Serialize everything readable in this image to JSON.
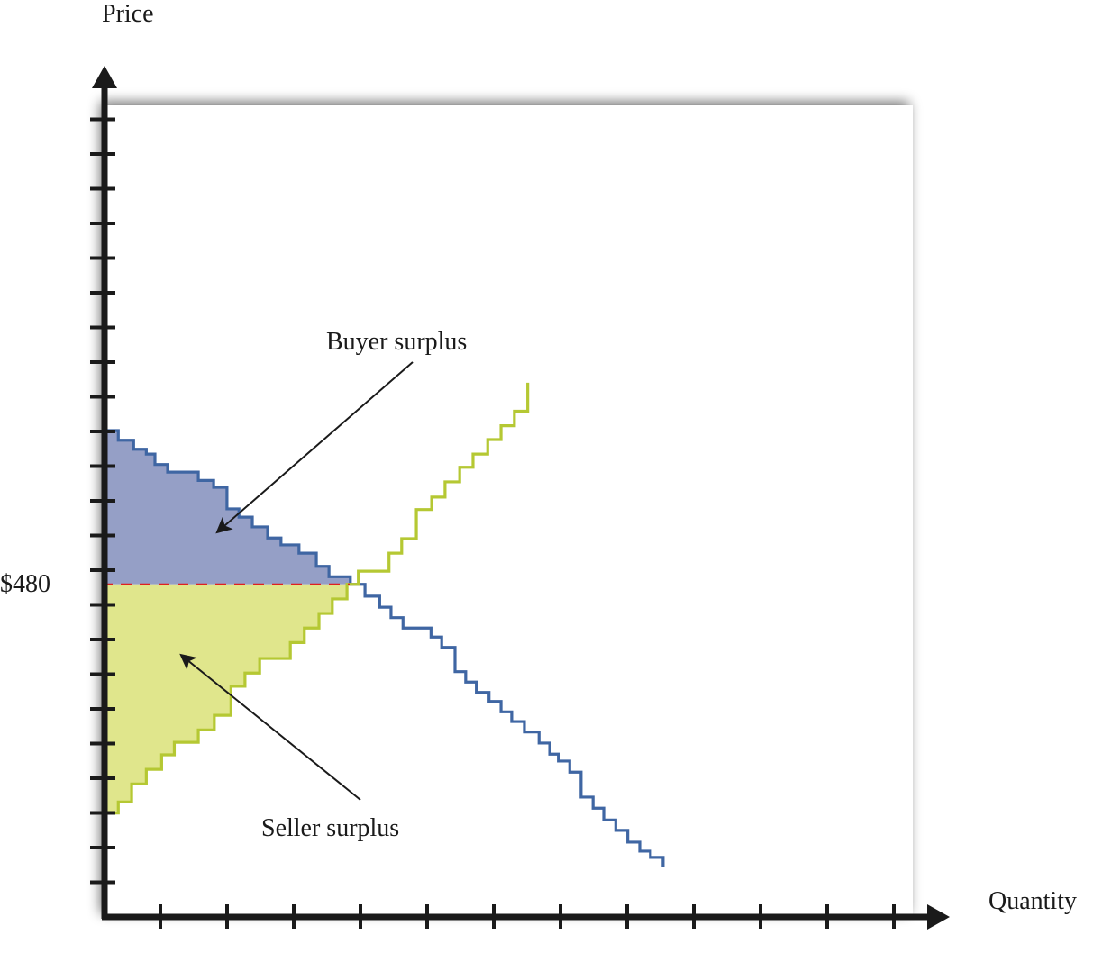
{
  "chart_data": {
    "type": "line",
    "title": "",
    "xlabel": "Quantity",
    "ylabel": "Price",
    "price_label": "$480",
    "equilibrium_price": 480,
    "grid": false,
    "annotations": [
      {
        "text": "Buyer surplus"
      },
      {
        "text": "Seller surplus"
      }
    ],
    "series": [
      {
        "role": "demand",
        "shape": "step-down",
        "start_q": 0,
        "steps": [
          [
            702,
            2.2
          ],
          [
            688,
            4.5
          ],
          [
            675,
            6.4
          ],
          [
            668,
            7.7
          ],
          [
            653,
            9.6
          ],
          [
            642,
            14.2
          ],
          [
            630,
            16.5
          ],
          [
            620,
            18.5
          ],
          [
            589,
            20.3
          ],
          [
            577,
            22.3
          ],
          [
            563,
            24.6
          ],
          [
            547,
            26.6
          ],
          [
            537,
            29.3
          ],
          [
            525,
            31.9
          ],
          [
            506,
            33.8
          ],
          [
            491,
            37.0
          ],
          [
            480,
            39.2
          ],
          [
            463,
            41.4
          ],
          [
            447,
            43.1
          ],
          [
            432,
            44.9
          ],
          [
            417,
            49.1
          ],
          [
            404,
            50.7
          ],
          [
            389,
            52.7
          ],
          [
            354,
            54.3
          ],
          [
            339,
            55.9
          ],
          [
            324,
            57.8
          ],
          [
            311,
            59.6
          ],
          [
            296,
            61.2
          ],
          [
            282,
            63.1
          ],
          [
            267,
            65.3
          ],
          [
            251,
            66.9
          ],
          [
            235,
            68.2
          ],
          [
            225,
            69.9
          ],
          [
            209,
            71.6
          ],
          [
            173,
            73.4
          ],
          [
            157,
            75.0
          ],
          [
            140,
            76.8
          ],
          [
            125,
            78.6
          ],
          [
            108,
            80.4
          ],
          [
            95,
            82.0
          ],
          [
            86,
            83.9
          ]
        ],
        "end_price": 72
      },
      {
        "role": "supply",
        "shape": "step-up",
        "start_q": 0,
        "steps": [
          [
            150,
            2.2
          ],
          [
            166,
            4.2
          ],
          [
            192,
            6.4
          ],
          [
            213,
            8.7
          ],
          [
            234,
            10.6
          ],
          [
            252,
            14.2
          ],
          [
            270,
            16.6
          ],
          [
            291,
            19.1
          ],
          [
            333,
            21.2
          ],
          [
            352,
            23.4
          ],
          [
            373,
            28.0
          ],
          [
            396,
            30.1
          ],
          [
            417,
            32.3
          ],
          [
            438,
            34.3
          ],
          [
            459,
            36.5
          ],
          [
            480,
            38.2
          ],
          [
            499,
            42.8
          ],
          [
            525,
            44.7
          ],
          [
            546,
            46.9
          ],
          [
            588,
            49.2
          ],
          [
            606,
            51.2
          ],
          [
            628,
            53.4
          ],
          [
            649,
            55.4
          ],
          [
            668,
            57.6
          ],
          [
            689,
            59.6
          ],
          [
            709,
            61.6
          ],
          [
            730,
            63.6
          ]
        ],
        "end_price": 771
      }
    ],
    "colors": {
      "demand": "#3f66a3",
      "supply": "#b5c833",
      "buyer_surplus_fill": "#959fc6",
      "seller_surplus_fill": "#e0e68c",
      "equilibrium_line": "#e02020",
      "axis": "#1a1a1a"
    }
  }
}
